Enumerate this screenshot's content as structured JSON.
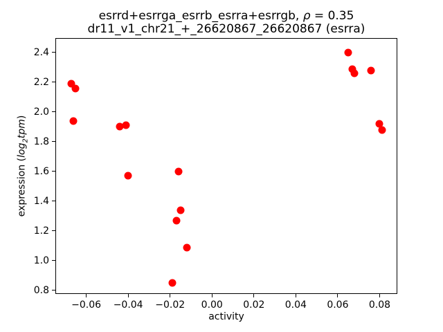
{
  "figure": {
    "title_prefix": "esrrd+esrrga_esrrb_esrra+esrrgb, ",
    "title_rho": "ρ",
    "title_eq": " = 0.35",
    "subtitle": "dr11_v1_chr21_+_26620867_26620867 (esrra)",
    "ylabel_prefix": "expression (",
    "ylabel_log": "log",
    "ylabel_sub": "2",
    "ylabel_tpm": "tpm",
    "ylabel_suffix": ")"
  },
  "chart_data": {
    "type": "scatter",
    "title": "esrrd+esrrga_esrrb_esrra+esrrgb, ρ = 0.35",
    "subtitle": "dr11_v1_chr21_+_26620867_26620867 (esrra)",
    "xlabel": "activity",
    "ylabel": "expression (log2tpm)",
    "marker_color": "#ff0000",
    "background_color": "#ffffff",
    "grid": false,
    "legend": false,
    "xlim": [
      -0.0744,
      0.0881
    ],
    "ylim": [
      0.781,
      2.493
    ],
    "x_ticks": [
      -0.06,
      -0.04,
      -0.02,
      0.0,
      0.02,
      0.04,
      0.06,
      0.08
    ],
    "x_tick_labels": [
      "−0.06",
      "−0.04",
      "−0.02",
      "0.00",
      "0.02",
      "0.04",
      "0.06",
      "0.08"
    ],
    "y_ticks": [
      0.8,
      1.0,
      1.2,
      1.4,
      1.6,
      1.8,
      2.0,
      2.2,
      2.4
    ],
    "y_tick_labels": [
      "0.8",
      "1.0",
      "1.2",
      "1.4",
      "1.6",
      "1.8",
      "2.0",
      "2.2",
      "2.4"
    ],
    "points": [
      {
        "x": -0.067,
        "y": 2.19
      },
      {
        "x": -0.065,
        "y": 2.16
      },
      {
        "x": -0.066,
        "y": 1.94
      },
      {
        "x": -0.044,
        "y": 1.9
      },
      {
        "x": -0.041,
        "y": 1.91
      },
      {
        "x": -0.04,
        "y": 1.57
      },
      {
        "x": -0.016,
        "y": 1.6
      },
      {
        "x": -0.017,
        "y": 1.27
      },
      {
        "x": -0.015,
        "y": 1.34
      },
      {
        "x": -0.012,
        "y": 1.09
      },
      {
        "x": -0.019,
        "y": 0.85
      },
      {
        "x": 0.065,
        "y": 2.4
      },
      {
        "x": 0.067,
        "y": 2.29
      },
      {
        "x": 0.068,
        "y": 2.26
      },
      {
        "x": 0.076,
        "y": 2.28
      },
      {
        "x": 0.08,
        "y": 1.92
      },
      {
        "x": 0.081,
        "y": 1.88
      }
    ]
  }
}
